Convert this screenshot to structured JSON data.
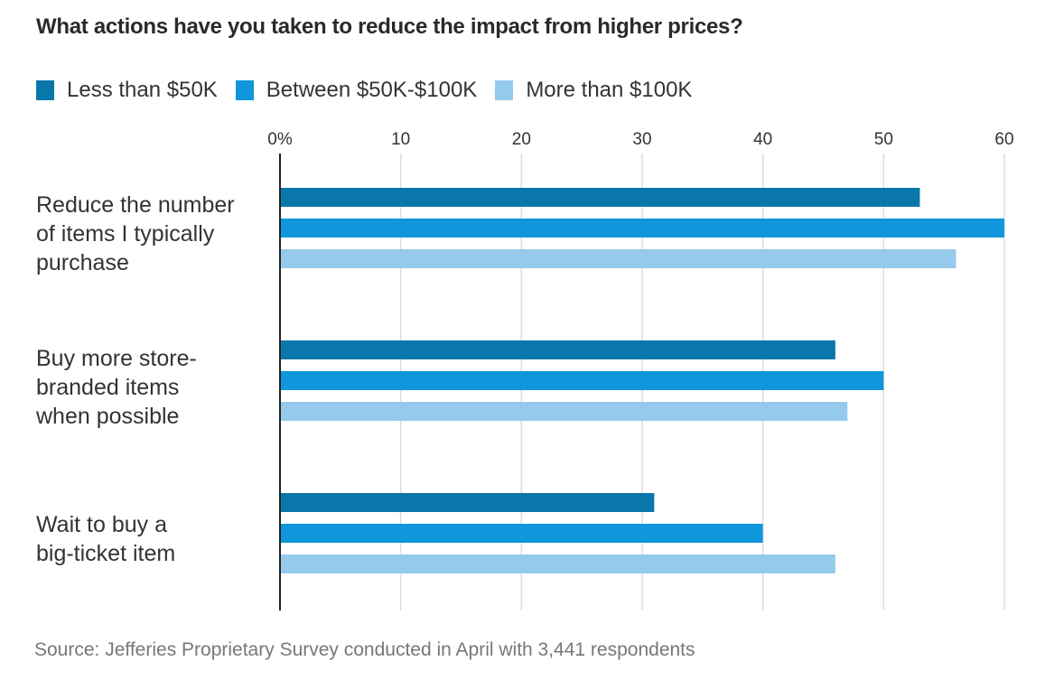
{
  "chart_data": {
    "type": "bar",
    "orientation": "horizontal",
    "title": "What actions have you taken to reduce the impact from higher prices?",
    "categories": [
      "Reduce the number of items I typically purchase",
      "Buy more store-branded items when possible",
      "Wait to buy a big-ticket item"
    ],
    "category_lines": [
      [
        "Reduce the number",
        "of items I typically",
        "purchase"
      ],
      [
        "Buy more store-",
        "branded items",
        "when possible"
      ],
      [
        "Wait to buy a",
        "big-ticket item"
      ]
    ],
    "series": [
      {
        "name": "Less than $50K",
        "color": "#0a77ab",
        "values": [
          53,
          46,
          31
        ]
      },
      {
        "name": "Between $50K-$100K",
        "color": "#0f96db",
        "values": [
          60,
          50,
          40
        ]
      },
      {
        "name": "More than $100K",
        "color": "#95caec",
        "values": [
          56,
          47,
          46
        ]
      }
    ],
    "xlim": [
      0,
      60
    ],
    "ticks": [
      0,
      10,
      20,
      30,
      40,
      50,
      60
    ],
    "tick_labels": [
      "0%",
      "10",
      "20",
      "30",
      "40",
      "50",
      "60"
    ],
    "xlabel": "",
    "ylabel": "",
    "grid": true,
    "legend_position": "top-left",
    "source": "Source: Jefferies Proprietary Survey conducted in April with 3,441 respondents"
  }
}
